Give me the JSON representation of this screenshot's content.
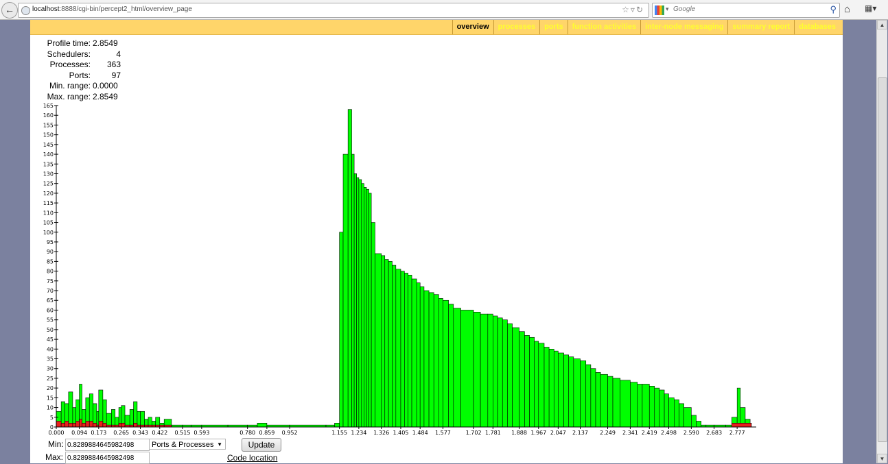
{
  "browser": {
    "url_host": "localhost",
    "url_rest": ":8888/cgi-bin/percept2_html/overview_page",
    "search_engine": "Google",
    "back_icon": "back-arrow-icon",
    "home_icon": "home-icon"
  },
  "nav": {
    "tabs": [
      {
        "label": "overview",
        "active": true
      },
      {
        "label": "processes",
        "active": false
      },
      {
        "label": "ports",
        "active": false
      },
      {
        "label": "function activities",
        "active": false
      },
      {
        "label": "inter-node messaging",
        "active": false
      },
      {
        "label": "summary report",
        "active": false
      },
      {
        "label": "databases",
        "active": false
      }
    ]
  },
  "stats": [
    {
      "label": "Profile time:",
      "value": "2.8549"
    },
    {
      "label": "Schedulers:",
      "value": "4"
    },
    {
      "label": "Processes:",
      "value": "363"
    },
    {
      "label": "Ports:",
      "value": "97"
    },
    {
      "label": "Min. range:",
      "value": "0.0000"
    },
    {
      "label": "Max. range:",
      "value": "2.8549"
    }
  ],
  "controls": {
    "min_label": "Min:",
    "max_label": "Max:",
    "min_value": "0.8289884645982498",
    "max_value": "0.8289884645982498",
    "select_value": "Ports & Processes",
    "update_label": "Update",
    "code_location_label": "Code location"
  },
  "colors": {
    "processes": "#00ff00",
    "ports": "#e8201c"
  },
  "chart_data": {
    "type": "area",
    "ylim": [
      0,
      165
    ],
    "y_ticks": [
      0,
      5,
      10,
      15,
      20,
      25,
      30,
      35,
      40,
      45,
      50,
      55,
      60,
      65,
      70,
      75,
      80,
      85,
      90,
      95,
      100,
      105,
      110,
      115,
      120,
      125,
      130,
      135,
      140,
      145,
      150,
      155,
      160,
      165
    ],
    "x_tick_labels": [
      {
        "x": 0.0,
        "label": "0.000"
      },
      {
        "x": 0.094,
        "label": "0.094"
      },
      {
        "x": 0.173,
        "label": "0.173"
      },
      {
        "x": 0.265,
        "label": "0.265"
      },
      {
        "x": 0.343,
        "label": "0.343"
      },
      {
        "x": 0.422,
        "label": "0.422"
      },
      {
        "x": 0.515,
        "label": "0.515"
      },
      {
        "x": 0.593,
        "label": "0.593"
      },
      {
        "x": 0.78,
        "label": "0.780"
      },
      {
        "x": 0.859,
        "label": "0.859"
      },
      {
        "x": 0.952,
        "label": "0.952"
      },
      {
        "x": 1.155,
        "label": "1.155"
      },
      {
        "x": 1.234,
        "label": "1.234"
      },
      {
        "x": 1.326,
        "label": "1.326"
      },
      {
        "x": 1.405,
        "label": "1.405"
      },
      {
        "x": 1.484,
        "label": "1.484"
      },
      {
        "x": 1.577,
        "label": "1.577"
      },
      {
        "x": 1.702,
        "label": "1.702"
      },
      {
        "x": 1.781,
        "label": "1.781"
      },
      {
        "x": 1.888,
        "label": "1.888"
      },
      {
        "x": 1.967,
        "label": "1.967"
      },
      {
        "x": 2.047,
        "label": "2.047"
      },
      {
        "x": 2.137,
        "label": "2.137"
      },
      {
        "x": 2.249,
        "label": "2.249"
      },
      {
        "x": 2.341,
        "label": "2.341"
      },
      {
        "x": 2.419,
        "label": "2.419"
      },
      {
        "x": 2.498,
        "label": "2.498"
      },
      {
        "x": 2.59,
        "label": "2.590"
      },
      {
        "x": 2.683,
        "label": "2.683"
      },
      {
        "x": 2.777,
        "label": "2.777"
      }
    ],
    "x_max": 2.8549,
    "series": [
      {
        "values": [
          [
            0.0,
            8
          ],
          [
            0.02,
            13
          ],
          [
            0.035,
            12
          ],
          [
            0.05,
            18
          ],
          [
            0.067,
            10
          ],
          [
            0.08,
            14
          ],
          [
            0.094,
            22
          ],
          [
            0.105,
            9
          ],
          [
            0.12,
            15
          ],
          [
            0.135,
            17
          ],
          [
            0.15,
            12
          ],
          [
            0.165,
            8
          ],
          [
            0.173,
            19
          ],
          [
            0.19,
            14
          ],
          [
            0.205,
            7
          ],
          [
            0.225,
            9
          ],
          [
            0.24,
            5
          ],
          [
            0.255,
            10
          ],
          [
            0.265,
            11
          ],
          [
            0.28,
            6
          ],
          [
            0.3,
            9
          ],
          [
            0.315,
            13
          ],
          [
            0.33,
            8
          ],
          [
            0.343,
            8
          ],
          [
            0.36,
            4
          ],
          [
            0.375,
            5
          ],
          [
            0.39,
            3
          ],
          [
            0.405,
            5
          ],
          [
            0.422,
            2
          ],
          [
            0.44,
            4
          ],
          [
            0.47,
            1
          ],
          [
            0.515,
            1
          ],
          [
            0.55,
            1
          ],
          [
            0.593,
            1
          ],
          [
            0.7,
            1
          ],
          [
            0.78,
            1
          ],
          [
            0.82,
            2
          ],
          [
            0.859,
            1
          ],
          [
            0.952,
            1
          ],
          [
            1.1,
            1
          ],
          [
            1.135,
            2
          ],
          [
            1.155,
            100
          ],
          [
            1.17,
            140
          ],
          [
            1.19,
            163
          ],
          [
            1.205,
            140
          ],
          [
            1.215,
            130
          ],
          [
            1.225,
            128
          ],
          [
            1.234,
            127
          ],
          [
            1.245,
            125
          ],
          [
            1.255,
            123
          ],
          [
            1.265,
            122
          ],
          [
            1.275,
            120
          ],
          [
            1.285,
            105
          ],
          [
            1.3,
            89
          ],
          [
            1.326,
            88
          ],
          [
            1.34,
            86
          ],
          [
            1.355,
            85
          ],
          [
            1.37,
            83
          ],
          [
            1.385,
            81
          ],
          [
            1.405,
            80
          ],
          [
            1.42,
            79
          ],
          [
            1.435,
            78
          ],
          [
            1.45,
            76
          ],
          [
            1.47,
            74
          ],
          [
            1.484,
            72
          ],
          [
            1.5,
            70
          ],
          [
            1.52,
            69
          ],
          [
            1.54,
            68
          ],
          [
            1.56,
            66
          ],
          [
            1.577,
            65
          ],
          [
            1.6,
            63
          ],
          [
            1.62,
            61
          ],
          [
            1.65,
            60
          ],
          [
            1.702,
            59
          ],
          [
            1.73,
            58
          ],
          [
            1.76,
            58
          ],
          [
            1.781,
            57
          ],
          [
            1.8,
            56
          ],
          [
            1.82,
            55
          ],
          [
            1.84,
            53
          ],
          [
            1.86,
            51
          ],
          [
            1.888,
            49
          ],
          [
            1.91,
            47
          ],
          [
            1.93,
            46
          ],
          [
            1.95,
            44
          ],
          [
            1.967,
            43
          ],
          [
            1.99,
            41
          ],
          [
            2.01,
            40
          ],
          [
            2.03,
            39
          ],
          [
            2.047,
            38
          ],
          [
            2.07,
            37
          ],
          [
            2.09,
            36
          ],
          [
            2.11,
            35
          ],
          [
            2.137,
            34
          ],
          [
            2.16,
            32
          ],
          [
            2.18,
            30
          ],
          [
            2.2,
            28
          ],
          [
            2.22,
            27
          ],
          [
            2.249,
            26
          ],
          [
            2.27,
            25
          ],
          [
            2.3,
            24
          ],
          [
            2.341,
            23
          ],
          [
            2.37,
            22
          ],
          [
            2.39,
            22
          ],
          [
            2.419,
            21
          ],
          [
            2.44,
            20
          ],
          [
            2.46,
            19
          ],
          [
            2.48,
            17
          ],
          [
            2.498,
            15
          ],
          [
            2.52,
            14
          ],
          [
            2.54,
            12
          ],
          [
            2.56,
            10
          ],
          [
            2.59,
            6
          ],
          [
            2.61,
            3
          ],
          [
            2.63,
            1
          ],
          [
            2.65,
            1
          ],
          [
            2.683,
            1
          ],
          [
            2.73,
            1
          ],
          [
            2.755,
            5
          ],
          [
            2.777,
            20
          ],
          [
            2.79,
            10
          ],
          [
            2.81,
            4
          ],
          [
            2.83,
            2
          ]
        ]
      },
      {
        "values": [
          [
            0.0,
            3
          ],
          [
            0.02,
            2
          ],
          [
            0.035,
            3
          ],
          [
            0.05,
            2
          ],
          [
            0.067,
            2
          ],
          [
            0.08,
            3
          ],
          [
            0.094,
            4
          ],
          [
            0.105,
            2
          ],
          [
            0.12,
            3
          ],
          [
            0.135,
            3
          ],
          [
            0.15,
            2
          ],
          [
            0.165,
            1
          ],
          [
            0.173,
            3
          ],
          [
            0.19,
            2
          ],
          [
            0.205,
            1
          ],
          [
            0.225,
            1
          ],
          [
            0.24,
            1
          ],
          [
            0.255,
            2
          ],
          [
            0.265,
            2
          ],
          [
            0.28,
            1
          ],
          [
            0.3,
            1
          ],
          [
            0.315,
            2
          ],
          [
            0.33,
            1
          ],
          [
            0.343,
            1
          ],
          [
            0.36,
            1
          ],
          [
            0.375,
            1
          ],
          [
            0.39,
            1
          ],
          [
            0.405,
            1
          ],
          [
            0.422,
            1
          ],
          [
            0.44,
            1
          ],
          [
            0.47,
            0
          ],
          [
            2.755,
            2
          ]
        ]
      }
    ]
  }
}
